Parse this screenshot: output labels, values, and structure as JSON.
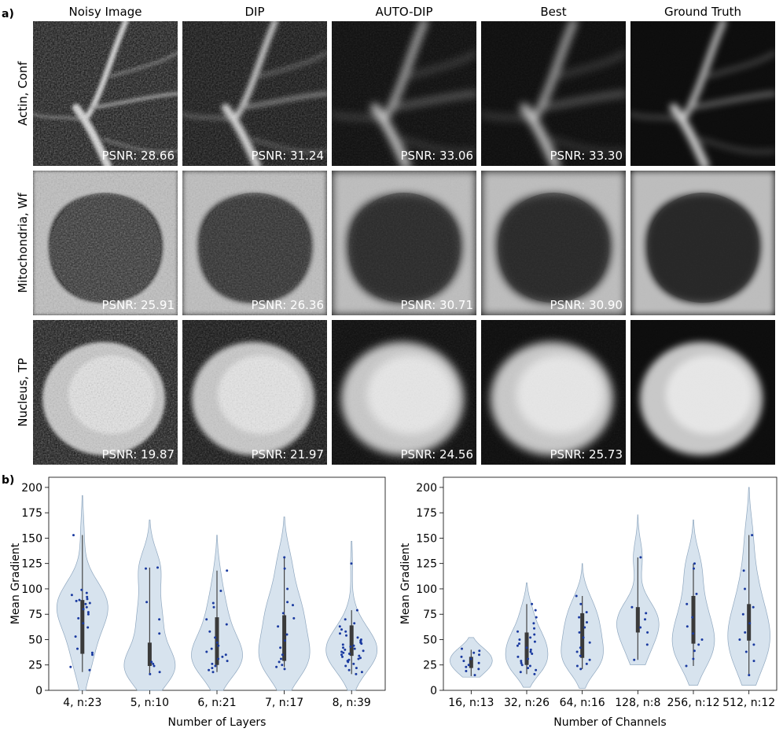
{
  "panel_a": {
    "label": "a)",
    "columns": [
      "Noisy Image",
      "DIP",
      "AUTO-DIP",
      "Best",
      "Ground Truth"
    ],
    "rows": [
      {
        "label": "Actin, Conf",
        "psnr": [
          "PSNR: 28.66",
          "PSNR: 31.24",
          "PSNR: 33.06",
          "PSNR: 33.30",
          ""
        ]
      },
      {
        "label": "Mitochondria, Wf",
        "psnr": [
          "PSNR: 25.91",
          "PSNR: 26.36",
          "PSNR: 30.71",
          "PSNR: 30.90",
          ""
        ]
      },
      {
        "label": "Nucleus, TP",
        "psnr": [
          "PSNR: 19.87",
          "PSNR: 21.97",
          "PSNR: 24.56",
          "PSNR: 25.73",
          ""
        ]
      }
    ]
  },
  "panel_b": {
    "label": "b)"
  },
  "chart_data": [
    {
      "type": "violin",
      "xlabel": "Number of Layers",
      "ylabel": "Mean Gradient",
      "ylim": [
        0,
        210
      ],
      "yticks": [
        0,
        25,
        50,
        75,
        100,
        125,
        150,
        175,
        200
      ],
      "grid": false,
      "categories": [
        "4, n:23",
        "5, n:10",
        "6, n:21",
        "7, n:17",
        "8, n:39"
      ],
      "violin_range": [
        [
          0,
          192
        ],
        [
          0,
          168
        ],
        [
          0,
          153
        ],
        [
          0,
          171
        ],
        [
          0,
          147
        ]
      ],
      "quartiles": [
        [
          36,
          89
        ],
        [
          24,
          47
        ],
        [
          25,
          72
        ],
        [
          29,
          74
        ],
        [
          34,
          64
        ]
      ],
      "whiskers": [
        [
          18,
          153
        ],
        [
          16,
          121
        ],
        [
          18,
          118
        ],
        [
          23,
          131
        ],
        [
          16,
          79
        ]
      ],
      "points": [
        [
          23,
          37,
          41,
          53,
          62,
          66,
          71,
          75,
          77,
          80,
          82,
          85,
          86,
          88,
          89,
          90,
          92,
          94,
          96,
          99,
          35,
          20,
          153
        ],
        [
          16,
          18,
          24,
          26,
          28,
          56,
          70,
          87,
          120,
          121
        ],
        [
          18,
          20,
          22,
          24,
          26,
          29,
          31,
          33,
          35,
          38,
          41,
          44,
          47,
          52,
          58,
          65,
          70,
          82,
          86,
          98,
          118
        ],
        [
          21,
          23,
          25,
          28,
          31,
          35,
          42,
          49,
          55,
          63,
          71,
          76,
          84,
          87,
          100,
          120,
          131
        ],
        [
          16,
          18,
          20,
          22,
          24,
          26,
          28,
          29,
          30,
          31,
          32,
          33,
          34,
          35,
          36,
          37,
          38,
          39,
          40,
          41,
          42,
          43,
          44,
          45,
          46,
          47,
          48,
          49,
          50,
          52,
          54,
          56,
          58,
          60,
          63,
          66,
          70,
          79,
          125
        ]
      ]
    },
    {
      "type": "violin",
      "xlabel": "Number of Channels",
      "ylabel": "Mean Gradient",
      "ylim": [
        0,
        210
      ],
      "yticks": [
        0,
        25,
        50,
        75,
        100,
        125,
        150,
        175,
        200
      ],
      "grid": false,
      "categories": [
        "16, n:13",
        "32, n:26",
        "64, n:16",
        "128, n:8",
        "256, n:12",
        "512, n:12"
      ],
      "violin_range": [
        [
          13,
          52
        ],
        [
          3,
          106
        ],
        [
          2,
          125
        ],
        [
          25,
          173
        ],
        [
          5,
          168
        ],
        [
          5,
          200
        ]
      ],
      "quartiles": [
        [
          22,
          33
        ],
        [
          25,
          57
        ],
        [
          32,
          76
        ],
        [
          57,
          82
        ],
        [
          46,
          93
        ],
        [
          49,
          85
        ]
      ],
      "whiskers": [
        [
          14,
          40
        ],
        [
          16,
          85
        ],
        [
          21,
          93
        ],
        [
          30,
          131
        ],
        [
          24,
          125
        ],
        [
          15,
          153
        ]
      ],
      "points": [
        [
          15,
          19,
          21,
          23,
          25,
          27,
          29,
          31,
          33,
          35,
          37,
          39,
          41
        ],
        [
          16,
          18,
          20,
          22,
          24,
          25,
          27,
          29,
          31,
          33,
          36,
          38,
          40,
          42,
          44,
          46,
          48,
          50,
          52,
          55,
          58,
          61,
          66,
          72,
          79,
          85
        ],
        [
          21,
          24,
          26,
          30,
          34,
          38,
          42,
          47,
          52,
          57,
          62,
          67,
          72,
          77,
          85,
          93
        ],
        [
          30,
          45,
          57,
          62,
          70,
          76,
          82,
          131
        ],
        [
          24,
          31,
          39,
          45,
          50,
          56,
          63,
          72,
          85,
          95,
          120,
          125
        ],
        [
          15,
          29,
          38,
          45,
          50,
          57,
          66,
          75,
          82,
          100,
          118,
          153
        ]
      ]
    }
  ]
}
